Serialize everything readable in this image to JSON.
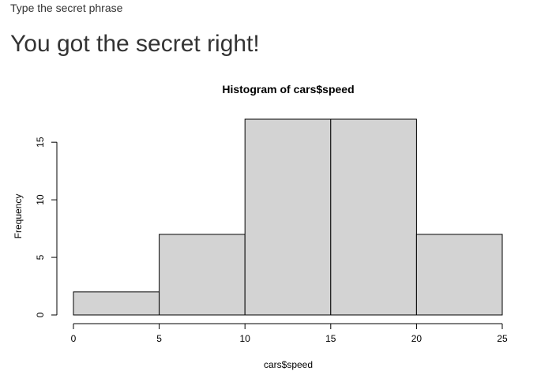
{
  "app": {
    "prompt_label": "Type the secret phrase",
    "result_message": "You got the secret right!"
  },
  "chart_data": {
    "type": "bar",
    "title": "Histogram of cars$speed",
    "xlabel": "cars$speed",
    "ylabel": "Frequency",
    "bins": [
      {
        "start": 0,
        "end": 5,
        "count": 2
      },
      {
        "start": 5,
        "end": 10,
        "count": 7
      },
      {
        "start": 10,
        "end": 15,
        "count": 17
      },
      {
        "start": 15,
        "end": 20,
        "count": 17
      },
      {
        "start": 20,
        "end": 25,
        "count": 7
      }
    ],
    "xlim": [
      0,
      25
    ],
    "ylim": [
      0,
      17
    ],
    "xticks": [
      0,
      5,
      10,
      15,
      20,
      25
    ],
    "yticks": [
      0,
      5,
      10,
      15
    ],
    "bar_color": "#d3d3d3",
    "edge_color": "#000000",
    "grid": false
  }
}
